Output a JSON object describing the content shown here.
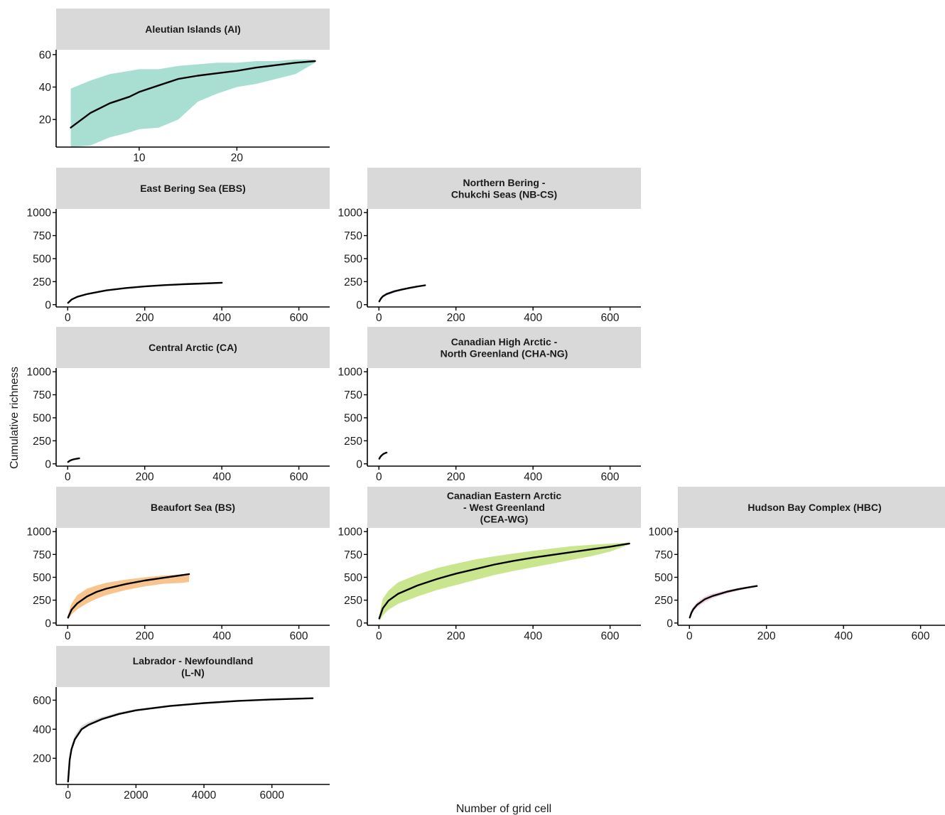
{
  "figure": {
    "xlabel": "Number of grid cell",
    "ylabel": "Cumulative richness"
  },
  "chart_data": [
    {
      "type": "area",
      "title": "Aleutian Islands (AI)",
      "title_lines": [
        "Aleutian Islands (AI)"
      ],
      "band_color": "#a8dfd2",
      "xlim": [
        1.5,
        29.5
      ],
      "ylim": [
        3,
        63
      ],
      "xticks": [
        10,
        20
      ],
      "yticks": [
        20,
        40,
        60
      ],
      "series": [
        {
          "x": [
            3,
            5,
            7,
            9,
            10,
            12,
            14,
            16,
            18,
            20,
            22,
            24,
            26,
            28
          ],
          "y": [
            15,
            24,
            30,
            34,
            37,
            41,
            45,
            47,
            48.5,
            50,
            52,
            53.5,
            55,
            56
          ],
          "lower": [
            3,
            4,
            9,
            12,
            14,
            15,
            20,
            31,
            36,
            40,
            42,
            45,
            48,
            55
          ],
          "upper": [
            39,
            44,
            48,
            50,
            51,
            51,
            53,
            54,
            55,
            55,
            56,
            56,
            57,
            57
          ]
        }
      ]
    },
    {
      "type": "area",
      "title": "East Bering Sea (EBS)",
      "title_lines": [
        "East Bering Sea (EBS)"
      ],
      "band_color": "#f3eba3",
      "xlim": [
        -30,
        680
      ],
      "ylim": [
        -25,
        1040
      ],
      "xticks": [
        0,
        200,
        400,
        600
      ],
      "yticks": [
        0,
        250,
        500,
        750,
        1000
      ],
      "series": [
        {
          "x": [
            1,
            10,
            25,
            50,
            100,
            150,
            200,
            250,
            300,
            350,
            400
          ],
          "y": [
            20,
            55,
            85,
            115,
            155,
            180,
            198,
            212,
            222,
            230,
            238
          ],
          "lower": [
            15,
            48,
            78,
            108,
            148,
            173,
            191,
            205,
            216,
            225,
            234
          ],
          "upper": [
            26,
            63,
            93,
            122,
            162,
            187,
            205,
            219,
            228,
            235,
            241
          ]
        }
      ]
    },
    {
      "type": "area",
      "title": "Northern Bering - Chukchi Seas (NB-CS)",
      "title_lines": [
        "Northern Bering -",
        "Chukchi Seas (NB-CS)"
      ],
      "band_color": "#cfc7e6",
      "xlim": [
        -30,
        680
      ],
      "ylim": [
        -25,
        1040
      ],
      "xticks": [
        0,
        200,
        400,
        600
      ],
      "yticks": [
        0,
        250,
        500,
        750,
        1000
      ],
      "series": [
        {
          "x": [
            1,
            5,
            10,
            20,
            40,
            60,
            80,
            100,
            120
          ],
          "y": [
            35,
            65,
            90,
            115,
            145,
            165,
            182,
            197,
            210
          ],
          "lower": [
            25,
            52,
            75,
            100,
            132,
            154,
            172,
            189,
            205
          ],
          "upper": [
            48,
            80,
            105,
            130,
            158,
            176,
            192,
            205,
            215
          ]
        }
      ]
    },
    {
      "type": "area",
      "title": "Central Arctic (CA)",
      "title_lines": [
        "Central Arctic (CA)"
      ],
      "band_color": "#e9b8aa",
      "xlim": [
        -30,
        680
      ],
      "ylim": [
        -25,
        1040
      ],
      "xticks": [
        0,
        200,
        400,
        600
      ],
      "yticks": [
        0,
        250,
        500,
        750,
        1000
      ],
      "series": [
        {
          "x": [
            1,
            5,
            10,
            15,
            20,
            25,
            30
          ],
          "y": [
            20,
            32,
            42,
            48,
            53,
            57,
            60
          ],
          "lower": [
            15,
            26,
            36,
            43,
            48,
            53,
            58
          ],
          "upper": [
            26,
            38,
            48,
            54,
            58,
            61,
            63
          ]
        }
      ]
    },
    {
      "type": "area",
      "title": "Canadian High Arctic - North Greenland (CHA-NG)",
      "title_lines": [
        "Canadian High Arctic -",
        "North Greenland (CHA-NG)"
      ],
      "band_color": "#bcd3ea",
      "xlim": [
        -30,
        680
      ],
      "ylim": [
        -25,
        1040
      ],
      "xticks": [
        0,
        200,
        400,
        600
      ],
      "yticks": [
        0,
        250,
        500,
        750,
        1000
      ],
      "series": [
        {
          "x": [
            1,
            3,
            5,
            8,
            11,
            14,
            17,
            20
          ],
          "y": [
            55,
            70,
            82,
            95,
            105,
            112,
            118,
            122
          ],
          "lower": [
            45,
            60,
            72,
            86,
            97,
            105,
            112,
            118
          ],
          "upper": [
            66,
            81,
            93,
            105,
            114,
            120,
            124,
            126
          ]
        }
      ]
    },
    {
      "type": "area",
      "title": "Beaufort Sea (BS)",
      "title_lines": [
        "Beaufort Sea (BS)"
      ],
      "band_color": "#f8c48e",
      "xlim": [
        -30,
        680
      ],
      "ylim": [
        -25,
        1040
      ],
      "xticks": [
        0,
        200,
        400,
        600
      ],
      "yticks": [
        0,
        250,
        500,
        750,
        1000
      ],
      "series": [
        {
          "x": [
            1,
            10,
            25,
            50,
            75,
            100,
            150,
            200,
            250,
            300,
            315
          ],
          "y": [
            60,
            145,
            215,
            290,
            340,
            375,
            425,
            465,
            495,
            525,
            535
          ],
          "lower": [
            40,
            95,
            150,
            215,
            265,
            305,
            360,
            400,
            430,
            440,
            450
          ],
          "upper": [
            90,
            215,
            305,
            375,
            410,
            440,
            475,
            500,
            520,
            535,
            540
          ]
        }
      ]
    },
    {
      "type": "area",
      "title": "Canadian Eastern Arctic - West Greenland (CEA-WG)",
      "title_lines": [
        "Canadian Eastern Arctic",
        "- West Greenland",
        "(CEA-WG)"
      ],
      "band_color": "#c9e58e",
      "xlim": [
        -30,
        680
      ],
      "ylim": [
        -25,
        1040
      ],
      "xticks": [
        0,
        200,
        400,
        600
      ],
      "yticks": [
        0,
        250,
        500,
        750,
        1000
      ],
      "series": [
        {
          "x": [
            1,
            10,
            25,
            50,
            100,
            150,
            200,
            250,
            300,
            350,
            400,
            450,
            500,
            550,
            600,
            650
          ],
          "y": [
            50,
            160,
            245,
            320,
            410,
            480,
            540,
            590,
            640,
            680,
            715,
            745,
            775,
            805,
            835,
            870
          ],
          "lower": [
            20,
            80,
            145,
            210,
            290,
            360,
            415,
            470,
            525,
            570,
            610,
            650,
            690,
            730,
            780,
            860
          ],
          "upper": [
            90,
            265,
            355,
            445,
            530,
            600,
            650,
            695,
            730,
            760,
            790,
            815,
            840,
            855,
            868,
            880
          ]
        }
      ]
    },
    {
      "type": "area",
      "title": "Hudson Bay Complex (HBC)",
      "title_lines": [
        "Hudson Bay Complex (HBC)"
      ],
      "band_color": "#f2cfe0",
      "xlim": [
        -30,
        680
      ],
      "ylim": [
        -25,
        1040
      ],
      "xticks": [
        0,
        200,
        400,
        600
      ],
      "yticks": [
        0,
        250,
        500,
        750,
        1000
      ],
      "series": [
        {
          "x": [
            1,
            5,
            10,
            20,
            40,
            60,
            80,
            100,
            125,
            150,
            175
          ],
          "y": [
            60,
            110,
            150,
            200,
            260,
            295,
            320,
            345,
            368,
            388,
            405
          ],
          "lower": [
            40,
            85,
            120,
            170,
            230,
            270,
            300,
            325,
            352,
            376,
            400
          ],
          "upper": [
            85,
            140,
            180,
            230,
            290,
            322,
            342,
            362,
            382,
            398,
            410
          ]
        }
      ]
    },
    {
      "type": "area",
      "title": "Labrador - Newfoundland (L-N)",
      "title_lines": [
        "Labrador - Newfoundland",
        "(L-N)"
      ],
      "band_color": "#dcdcdc",
      "xlim": [
        -350,
        7700
      ],
      "ylim": [
        20,
        690
      ],
      "xticks": [
        0,
        2000,
        4000,
        6000
      ],
      "yticks": [
        200,
        400,
        600
      ],
      "series": [
        {
          "x": [
            1,
            50,
            100,
            200,
            400,
            600,
            1000,
            1500,
            2000,
            3000,
            4000,
            5000,
            6000,
            7200
          ],
          "y": [
            40,
            190,
            260,
            330,
            400,
            430,
            470,
            505,
            530,
            560,
            580,
            595,
            605,
            613
          ],
          "lower": [
            30,
            175,
            245,
            318,
            390,
            420,
            462,
            498,
            524,
            555,
            576,
            592,
            603,
            612
          ],
          "upper": [
            55,
            215,
            290,
            360,
            425,
            450,
            485,
            517,
            540,
            567,
            585,
            598,
            607,
            615
          ]
        }
      ]
    }
  ]
}
